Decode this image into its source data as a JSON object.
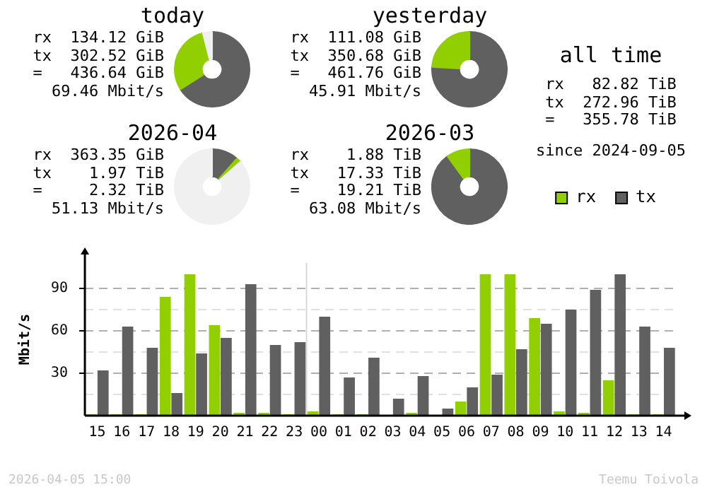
{
  "chart_data": [
    {
      "type": "donut",
      "title": "today",
      "categories": [
        null,
        null,
        null
      ],
      "values": [
        66,
        30,
        4
      ],
      "colors": [
        "#606060",
        "#92cf00",
        "#f0f0f0"
      ],
      "annotations": [
        "rx  134.12 GiB",
        "tx  302.52 GiB",
        "=   436.64 GiB",
        "69.46 Mbit/s"
      ]
    },
    {
      "type": "donut",
      "title": "yesterday",
      "categories": [
        null,
        null
      ],
      "values": [
        76,
        24
      ],
      "colors": [
        "#606060",
        "#92cf00"
      ],
      "annotations": [
        "rx  111.08 GiB",
        "tx  350.68 GiB",
        "=   461.76 GiB",
        "45.91 Mbit/s"
      ]
    },
    {
      "type": "other",
      "title": "all time",
      "annotations": [
        "rx   82.82 TiB",
        "tx  272.96 TiB",
        "=   355.78 TiB",
        "since 2024-09-05"
      ]
    },
    {
      "type": "donut",
      "title": "2026-04",
      "categories": [
        null,
        null,
        null
      ],
      "values": [
        11.5,
        2,
        86.5
      ],
      "colors": [
        "#606060",
        "#92cf00",
        "#f0f0f0"
      ],
      "annotations": [
        "rx  363.35 GiB",
        "tx    1.97 TiB",
        "=     2.32 TiB",
        "51.13 Mbit/s"
      ]
    },
    {
      "type": "donut",
      "title": "2026-03",
      "categories": [
        null,
        null
      ],
      "values": [
        90,
        10
      ],
      "colors": [
        "#606060",
        "#92cf00"
      ],
      "annotations": [
        "rx    1.88 TiB",
        "tx   17.33 TiB",
        "=    19.21 TiB",
        "63.08 Mbit/s"
      ]
    },
    {
      "type": "bar",
      "ylabel": "Mbit/s",
      "categories": [
        "15",
        "16",
        "17",
        "18",
        "19",
        "20",
        "21",
        "22",
        "23",
        "00",
        "01",
        "02",
        "03",
        "04",
        "05",
        "06",
        "07",
        "08",
        "09",
        "10",
        "11",
        "12",
        "13",
        "14"
      ],
      "series": [
        {
          "name": "rx",
          "color": "#92cf00",
          "values": [
            1,
            1,
            1,
            84,
            100,
            64,
            2,
            2,
            1,
            3,
            1,
            1,
            0,
            2,
            0,
            10,
            100,
            100,
            69,
            3,
            2,
            25,
            1,
            1
          ]
        },
        {
          "name": "tx",
          "color": "#606060",
          "values": [
            32,
            63,
            48,
            16,
            44,
            55,
            93,
            50,
            52,
            70,
            27,
            41,
            12,
            28,
            5,
            20,
            29,
            47,
            65,
            75,
            89,
            100,
            63,
            48
          ]
        }
      ],
      "ylim": [
        0,
        108
      ],
      "yticks": [
        {
          "value": 0,
          "label": null
        },
        {
          "value": 15,
          "label": null
        },
        30,
        {
          "value": 45,
          "label": null
        },
        60,
        {
          "value": 75,
          "label": null
        },
        90
      ],
      "grid": "y",
      "legend": "top right",
      "ref_lines": [
        {
          "axis": "x",
          "value": "00",
          "color": "#d8d8d8"
        }
      ],
      "annotations": [
        "2026-04-05 15:00",
        "Teemu Toivola"
      ]
    }
  ]
}
